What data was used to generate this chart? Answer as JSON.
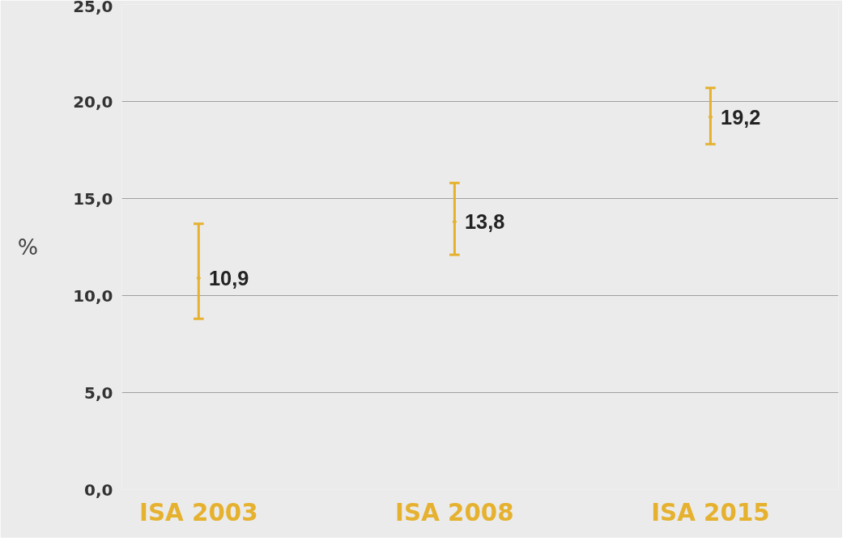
{
  "chart_data": {
    "type": "scatter",
    "ylabel": "%",
    "categories": [
      "ISA 2003",
      "ISA 2008",
      "ISA 2015"
    ],
    "series": [
      {
        "color": "#e5b12e",
        "values": [
          10.9,
          13.8,
          19.2
        ],
        "errors": [
          [
            8.8,
            13.7
          ],
          [
            12.1,
            15.8
          ],
          [
            17.8,
            20.7
          ]
        ],
        "value_labels": [
          "10,9",
          "13,8",
          "19,2"
        ]
      }
    ],
    "ylim": [
      0,
      25
    ],
    "yticks": [
      {
        "value": 0,
        "label": "0,0"
      },
      {
        "value": 5,
        "label": "5,0"
      },
      {
        "value": 10,
        "label": "10,0"
      },
      {
        "value": 15,
        "label": "15,0"
      },
      {
        "value": 20,
        "label": "20,0"
      },
      {
        "value": 25,
        "label": "25,0"
      }
    ],
    "grid": "y"
  }
}
